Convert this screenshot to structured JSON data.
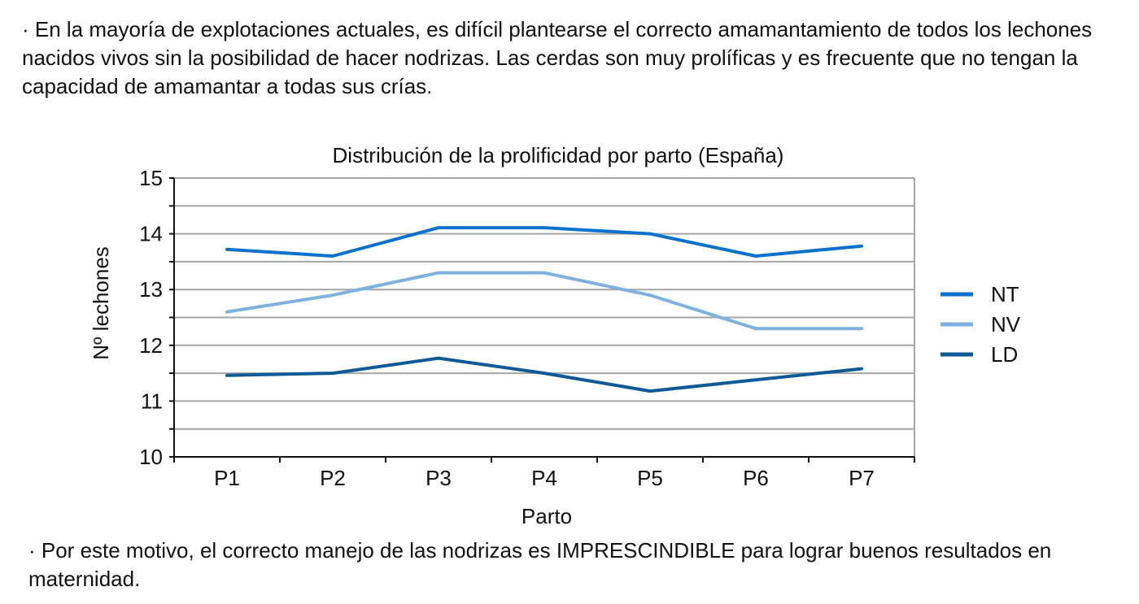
{
  "text": {
    "top": "· En la mayoría de explotaciones actuales, es difícil plantearse el correcto amamantamiento de todos los lechones nacidos vivos sin la posibilidad de hacer nodrizas. Las cerdas son muy prolíficas y es frecuente que no tengan la capacidad de amamantar a todas sus crías.",
    "bottom": "· Por este motivo, el correcto manejo de las nodrizas es IMPRESCINDIBLE para lograr buenos resultados en maternidad."
  },
  "chart_data": {
    "type": "line",
    "title": "Distribución de la prolificidad por parto (España)",
    "xlabel": "Parto",
    "ylabel": "Nº lechones",
    "categories": [
      "P1",
      "P2",
      "P3",
      "P4",
      "P5",
      "P6",
      "P7"
    ],
    "ylim": [
      10,
      15
    ],
    "yticks": [
      10,
      11,
      12,
      13,
      14,
      15
    ],
    "ytick_labels": [
      "10",
      "11",
      "12",
      "13",
      "14",
      "15"
    ],
    "grid": true,
    "minor_grid_step": 0.5,
    "legend_position": "right",
    "series": [
      {
        "name": "NT",
        "color": "#0a72cc",
        "values": [
          13.72,
          13.6,
          14.11,
          14.11,
          14.0,
          13.6,
          13.78
        ]
      },
      {
        "name": "NV",
        "color": "#7fb1df",
        "values": [
          12.6,
          12.9,
          13.3,
          13.3,
          12.9,
          12.3,
          12.3
        ]
      },
      {
        "name": "LD",
        "color": "#0f5a96",
        "values": [
          11.46,
          11.5,
          11.77,
          11.5,
          11.18,
          11.38,
          11.58
        ]
      }
    ]
  }
}
